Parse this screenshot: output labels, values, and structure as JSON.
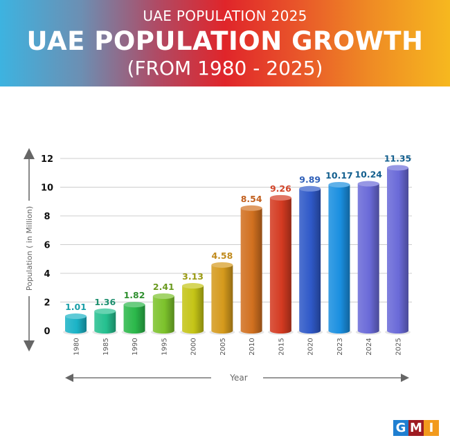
{
  "header": {
    "subtitle": "UAE POPULATION 2025",
    "title": "UAE POPULATION GROWTH",
    "range": "(FROM 1980 - 2025)"
  },
  "logo": {
    "letters": [
      "G",
      "M",
      "I"
    ],
    "colors": [
      "#1f7fd1",
      "#9e1b22",
      "#f29a1d"
    ]
  },
  "chart_data": {
    "type": "bar",
    "title": "UAE POPULATION GROWTH (FROM 1980 - 2025)",
    "xlabel": "Year",
    "ylabel": "Population ( in Million)",
    "ylim": [
      0,
      12
    ],
    "yticks": [
      0,
      2,
      4,
      6,
      8,
      10,
      12
    ],
    "grid": true,
    "categories": [
      "1980",
      "1985",
      "1990",
      "1995",
      "2000",
      "2005",
      "2010",
      "2015",
      "2020",
      "2023",
      "2024",
      "2025"
    ],
    "values": [
      1.01,
      1.36,
      1.82,
      2.41,
      3.13,
      4.58,
      8.54,
      9.26,
      9.89,
      10.17,
      10.24,
      11.35
    ],
    "value_labels": [
      "1.01",
      "1.36",
      "1.82",
      "2.41",
      "3.13",
      "4.58",
      "8.54",
      "9.26",
      "9.89",
      "10.17",
      "10.24",
      "11.35"
    ],
    "bar_colors": [
      "#1bb3c6",
      "#25c08f",
      "#2bb84a",
      "#7cc22b",
      "#c4c416",
      "#d59a1c",
      "#d1701f",
      "#d43a21",
      "#2f59c8",
      "#1a8fe0",
      "#6a6ad8",
      "#6a6ad8"
    ],
    "label_colors": [
      "#1a9fa8",
      "#1d8f6e",
      "#2f8f2f",
      "#6a9a1f",
      "#9a9a12",
      "#c08a1c",
      "#c2601e",
      "#d3452a",
      "#2e5fb8",
      "#135f8e",
      "#135f8e",
      "#135f8e"
    ]
  }
}
